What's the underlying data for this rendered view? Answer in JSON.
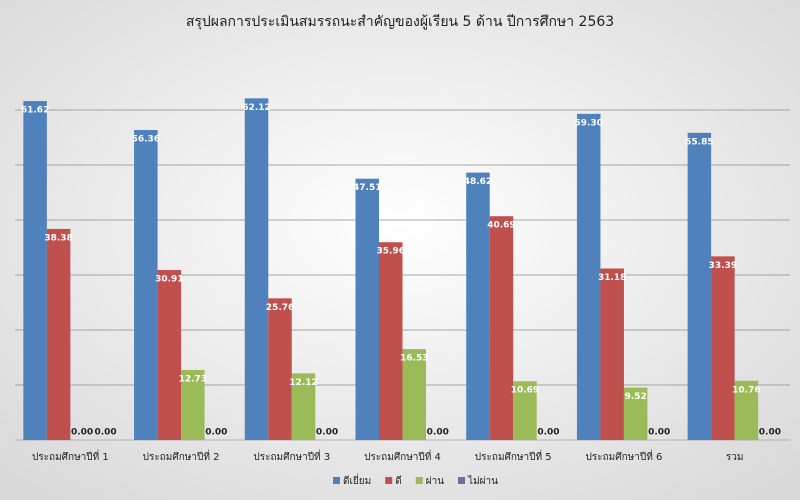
{
  "chart_data": {
    "type": "bar",
    "title": "สรุปผลการประเมินสมรรถนะสำคัญของผู้เรียน 5 ด้าน ปีการศึกษา 2563",
    "categories": [
      "ประถมศึกษาปีที่ 1",
      "ประถมศึกษาปีที่ 2",
      "ประถมศึกษาปีที่ 3",
      "ประถมศึกษาปีที่ 4",
      "ประถมศึกษาปีที่ 5",
      "ประถมศึกษาปีที่ 6",
      "รวม"
    ],
    "series": [
      {
        "name": "ดีเยี่ยม",
        "color": "#4f81bd",
        "values": [
          61.62,
          56.36,
          62.12,
          47.51,
          48.62,
          59.3,
          55.85
        ],
        "value_labels": [
          "61.62",
          "56.36",
          "62.12",
          "47.51",
          "48.62",
          "59.30",
          "55.85"
        ]
      },
      {
        "name": "ดี",
        "color": "#c0504d",
        "values": [
          38.38,
          30.91,
          25.76,
          35.96,
          40.69,
          31.18,
          33.39
        ],
        "value_labels": [
          "38.38",
          "30.91",
          "25.76",
          "35.96",
          "40.69",
          "31.18",
          "33.39"
        ]
      },
      {
        "name": "ผ่าน",
        "color": "#9bbb59",
        "values": [
          0,
          12.73,
          12.12,
          16.53,
          10.69,
          9.52,
          10.76
        ],
        "value_labels": [
          "0.00",
          "12.73",
          "12.12",
          "16.53",
          "10.69",
          "9.52",
          "10.76"
        ]
      },
      {
        "name": "ไม่ผ่าน",
        "color": "#8064a2",
        "values": [
          0,
          0,
          0,
          0,
          0,
          0,
          0
        ],
        "value_labels": [
          "0.00",
          "0.00",
          "0.00",
          "0.00",
          "0.00",
          "0.00",
          "0.00"
        ]
      }
    ],
    "ylim": [
      0,
      70
    ],
    "yticks": [
      0,
      10,
      20,
      30,
      40,
      50,
      60
    ],
    "grid": true,
    "legend": "bottom"
  }
}
